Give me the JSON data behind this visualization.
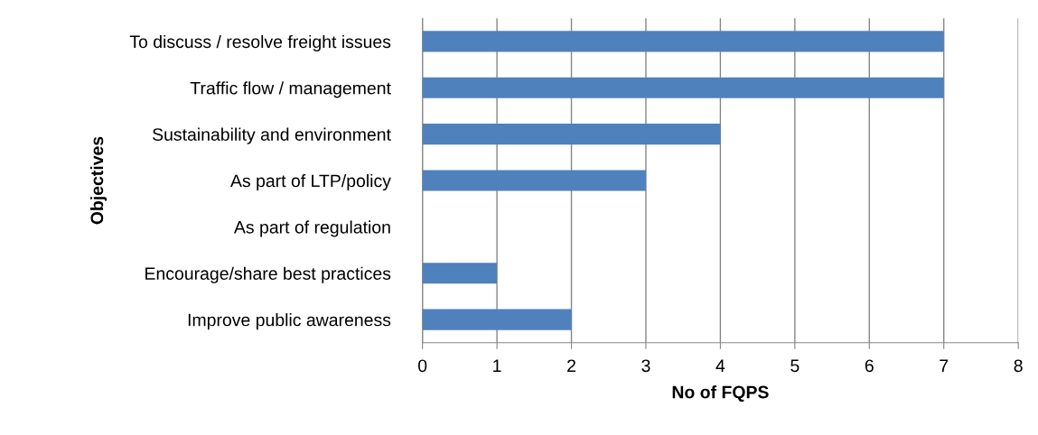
{
  "chart_data": {
    "type": "bar",
    "orientation": "horizontal",
    "categories": [
      "To discuss / resolve freight issues",
      "Traffic flow / management",
      "Sustainability and environment",
      "As part of LTP/policy",
      "As part of regulation",
      "Encourage/share best practices",
      "Improve public awareness"
    ],
    "values": [
      7,
      7,
      4,
      3,
      0,
      1,
      2
    ],
    "color": "#4f81bd",
    "xlim": [
      0,
      8
    ],
    "xticks": [
      0,
      1,
      2,
      3,
      4,
      5,
      6,
      7,
      8
    ],
    "xlabel": "No of FQPS",
    "ylabel": "Objectives",
    "grid": "x",
    "legend": false
  }
}
